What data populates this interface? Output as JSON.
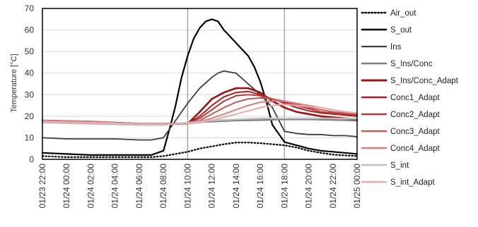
{
  "chart_data": {
    "type": "line",
    "title": "",
    "xlabel": "",
    "ylabel": "Temperature [°C]",
    "ylim": [
      0,
      70
    ],
    "yticks": [
      0,
      10,
      20,
      30,
      40,
      50,
      60,
      70
    ],
    "xlim_hours": [
      0,
      26
    ],
    "x_unit": "hours from 01/23 22:00",
    "xticks": [
      {
        "h": 0,
        "label": "01/23  22:00"
      },
      {
        "h": 2,
        "label": "01/24  00:00"
      },
      {
        "h": 4,
        "label": "01/24  02:00"
      },
      {
        "h": 6,
        "label": "01/24  04:00"
      },
      {
        "h": 8,
        "label": "01/24  06:00"
      },
      {
        "h": 10,
        "label": "01/24  08:00"
      },
      {
        "h": 12,
        "label": "01/24  10:00"
      },
      {
        "h": 14,
        "label": "01/24  12:00"
      },
      {
        "h": 16,
        "label": "01/24  14:00"
      },
      {
        "h": 18,
        "label": "01/24  16:00"
      },
      {
        "h": 20,
        "label": "01/24  18:00"
      },
      {
        "h": 22,
        "label": "01/24  20:00"
      },
      {
        "h": 24,
        "label": "01/24  22:00"
      },
      {
        "h": 26,
        "label": "01/25  00:00"
      }
    ],
    "vlines_hours": [
      12,
      20
    ],
    "legend_position": "right",
    "series": [
      {
        "name": "Air_out",
        "color": "#000000",
        "style": "dotted",
        "width": 2.2,
        "x": [
          0,
          2,
          4,
          6,
          8,
          9,
          10,
          11,
          12,
          13,
          14,
          15,
          16,
          17,
          18,
          19,
          20,
          21,
          22,
          23,
          24,
          25,
          26
        ],
        "y": [
          1.5,
          1,
          1,
          1,
          1,
          1,
          1.5,
          2.5,
          3.5,
          5,
          6,
          7,
          7.8,
          7.8,
          7.5,
          7,
          6.5,
          5.5,
          4,
          3,
          2.2,
          1.8,
          1.5
        ]
      },
      {
        "name": "S_out",
        "color": "#000000",
        "style": "solid",
        "width": 2.2,
        "x": [
          0,
          2,
          4,
          6,
          8,
          9,
          10,
          10.5,
          11,
          11.5,
          12,
          12.5,
          13,
          13.5,
          14,
          14.5,
          15,
          15.5,
          16,
          16.5,
          17,
          17.5,
          18,
          18.5,
          19,
          19.5,
          20,
          21,
          22,
          23,
          24,
          25,
          26
        ],
        "y": [
          3,
          2.5,
          2,
          2,
          2,
          2,
          4,
          14,
          25,
          38,
          48,
          56,
          61,
          64,
          65,
          64,
          60,
          57,
          54,
          51,
          48,
          43,
          36,
          27,
          16,
          12,
          8,
          6.5,
          5,
          4,
          3.5,
          3,
          2.5
        ]
      },
      {
        "name": "Ins",
        "color": "#3c3c3c",
        "style": "solid",
        "width": 1.8,
        "x": [
          0,
          2,
          4,
          6,
          8,
          9,
          10,
          11,
          12,
          13,
          14,
          14.5,
          15,
          15.5,
          16,
          17,
          18,
          19,
          20,
          21,
          22,
          23,
          24,
          25,
          26
        ],
        "y": [
          10,
          9.5,
          9.5,
          9.5,
          9,
          9,
          10,
          18,
          26,
          33,
          38,
          40,
          41,
          40.5,
          40,
          35,
          30,
          24,
          13,
          12,
          11.5,
          11.5,
          11,
          11,
          10.5
        ]
      },
      {
        "name": "S_Ins/Conc",
        "color": "#7f7f7f",
        "style": "solid",
        "width": 2.2,
        "x": [
          0,
          4,
          8,
          10,
          12,
          14,
          16,
          18,
          20,
          22,
          24,
          26
        ],
        "y": [
          17.5,
          16.5,
          16,
          16,
          17,
          17.5,
          18,
          18.2,
          18.5,
          18.5,
          18.3,
          18
        ]
      },
      {
        "name": "S_Ins/Conc_Adapt",
        "color": "#9a1313",
        "style": "solid",
        "width": 2.6,
        "x": [
          0,
          4,
          8,
          10,
          12,
          13,
          14,
          15,
          16,
          17,
          18,
          19,
          20,
          21,
          22,
          23,
          24,
          25,
          26
        ],
        "y": [
          18,
          17.5,
          16.5,
          16.5,
          16.5,
          22,
          28,
          31,
          33,
          33,
          31,
          27,
          24,
          22,
          21,
          20,
          19.5,
          19,
          18.5
        ]
      },
      {
        "name": "Conc1_Adapt",
        "color": "#a82020",
        "style": "solid",
        "width": 2,
        "x": [
          0,
          4,
          8,
          10,
          12,
          13,
          14,
          15,
          16,
          17,
          18,
          19,
          20,
          21,
          22,
          23,
          24,
          25,
          26
        ],
        "y": [
          18,
          17.5,
          16.5,
          16.5,
          16.5,
          20,
          25,
          29,
          31,
          31.5,
          30,
          28,
          26,
          24,
          22.5,
          21.5,
          21,
          20.5,
          20
        ]
      },
      {
        "name": "Conc2_Adapt",
        "color": "#b53a3a",
        "style": "solid",
        "width": 2,
        "x": [
          0,
          4,
          8,
          10,
          12,
          13,
          14,
          15,
          16,
          17,
          18,
          19,
          20,
          21,
          22,
          23,
          24,
          25,
          26
        ],
        "y": [
          18,
          17.5,
          16.5,
          16.5,
          16.5,
          19,
          23,
          27,
          29.5,
          30,
          29.5,
          28,
          26.5,
          25,
          23.5,
          22,
          21.5,
          21,
          20.5
        ]
      },
      {
        "name": "Conc3_Adapt",
        "color": "#c45959",
        "style": "solid",
        "width": 2,
        "x": [
          0,
          4,
          8,
          10,
          12,
          13,
          14,
          15,
          16,
          17,
          18,
          19,
          20,
          21,
          22,
          23,
          24,
          25,
          26
        ],
        "y": [
          18,
          17.5,
          16.5,
          16.5,
          16.5,
          18,
          21,
          24,
          26.5,
          28,
          28.5,
          28,
          27,
          25.5,
          24,
          23,
          22,
          21.5,
          21
        ]
      },
      {
        "name": "Conc4_Adapt",
        "color": "#d68080",
        "style": "solid",
        "width": 2,
        "x": [
          0,
          4,
          8,
          10,
          12,
          13,
          14,
          15,
          16,
          17,
          18,
          19,
          20,
          21,
          22,
          23,
          24,
          25,
          26
        ],
        "y": [
          18,
          17.5,
          16.5,
          16.5,
          16.5,
          17.5,
          19,
          21,
          23,
          25,
          26.5,
          27,
          27,
          26,
          25,
          24,
          23,
          22,
          21.5
        ]
      },
      {
        "name": "S_int",
        "color": "#bfbfbf",
        "style": "solid",
        "width": 2.2,
        "x": [
          0,
          4,
          8,
          10,
          12,
          14,
          16,
          18,
          20,
          22,
          24,
          26
        ],
        "y": [
          17,
          16.5,
          16,
          16,
          17,
          18,
          18.5,
          19,
          19,
          19,
          19,
          18.8
        ]
      },
      {
        "name": "S_int_Adapt",
        "color": "#e8aaaa",
        "style": "solid",
        "width": 2,
        "x": [
          0,
          4,
          8,
          10,
          12,
          13,
          14,
          15,
          16,
          17,
          18,
          19,
          20,
          21,
          22,
          23,
          24,
          25,
          26
        ],
        "y": [
          17.5,
          17,
          16.5,
          16.5,
          16.5,
          17,
          18,
          19.5,
          21,
          22.5,
          24,
          25,
          25.5,
          25,
          24.5,
          24,
          23,
          22,
          21.5
        ]
      }
    ]
  }
}
